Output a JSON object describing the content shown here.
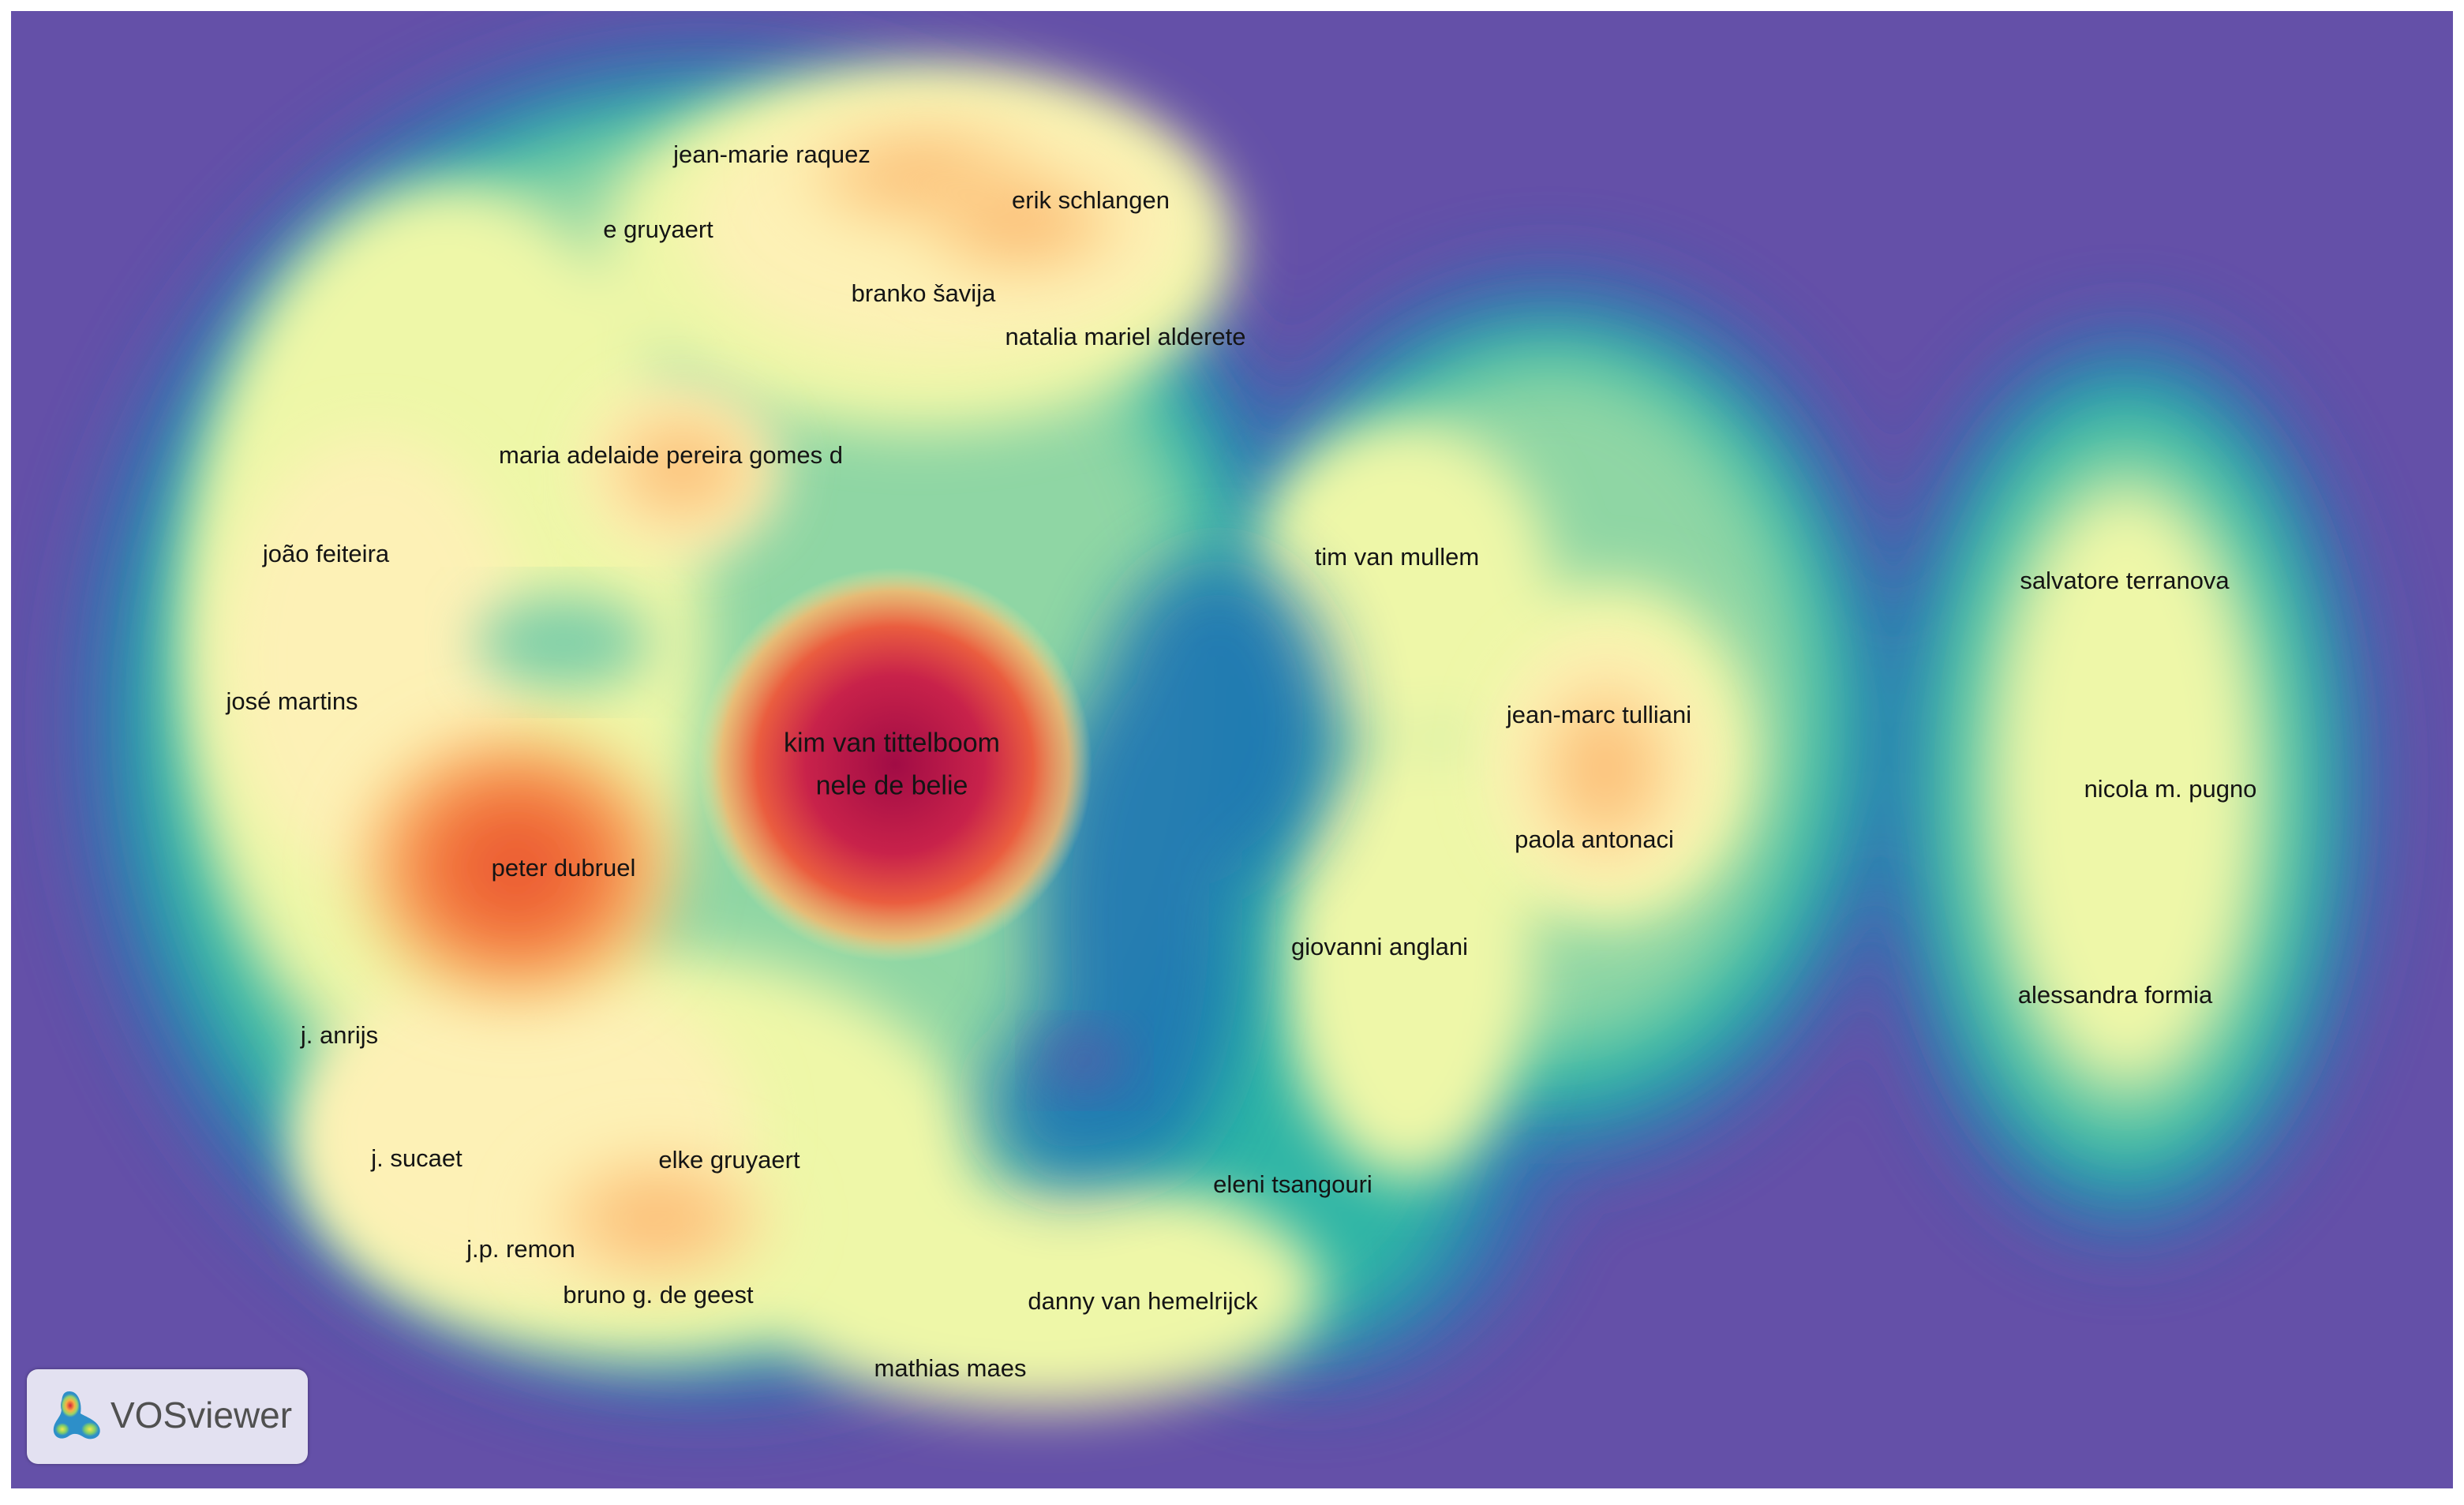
{
  "map": {
    "labels": [
      {
        "id": "jean-marie-raquez",
        "text": "jean-marie raquez"
      },
      {
        "id": "erik-schlangen",
        "text": "erik schlangen"
      },
      {
        "id": "e-gruyaert",
        "text": "e gruyaert"
      },
      {
        "id": "branko-savija",
        "text": "branko šavija"
      },
      {
        "id": "natalia-mariel-alderete",
        "text": "natalia mariel alderete"
      },
      {
        "id": "maria-adelaide-pereira-gomes-d",
        "text": "maria adelaide pereira gomes d"
      },
      {
        "id": "joao-feiteira",
        "text": "joão feiteira"
      },
      {
        "id": "jose-martins",
        "text": "josé martins"
      },
      {
        "id": "kim-van-tittelboom",
        "text": "kim van tittelboom"
      },
      {
        "id": "nele-de-belie",
        "text": "nele de belie"
      },
      {
        "id": "peter-dubruel",
        "text": "peter dubruel"
      },
      {
        "id": "j-anrijs",
        "text": "j. anrijs"
      },
      {
        "id": "j-sucaet",
        "text": "j. sucaet"
      },
      {
        "id": "elke-gruyaert",
        "text": "elke gruyaert"
      },
      {
        "id": "jp-remon",
        "text": "j.p. remon"
      },
      {
        "id": "bruno-g-de-geest",
        "text": "bruno g. de geest"
      },
      {
        "id": "mathias-maes",
        "text": "mathias maes"
      },
      {
        "id": "danny-van-hemelrijck",
        "text": "danny van hemelrijck"
      },
      {
        "id": "eleni-tsangouri",
        "text": "eleni tsangouri"
      },
      {
        "id": "giovanni-anglani",
        "text": "giovanni anglani"
      },
      {
        "id": "tim-van-mullem",
        "text": "tim van mullem"
      },
      {
        "id": "jean-marc-tulliani",
        "text": "jean-marc tulliani"
      },
      {
        "id": "paola-antonaci",
        "text": "paola antonaci"
      },
      {
        "id": "salvatore-terranova",
        "text": "salvatore terranova"
      },
      {
        "id": "nicola-m-pugno",
        "text": "nicola m. pugno"
      },
      {
        "id": "alessandra-formia",
        "text": "alessandra formia"
      }
    ]
  },
  "logo": {
    "text": "VOSviewer",
    "icon": "vosviewer-logo-icon"
  },
  "colors": {
    "background": "#6450a8",
    "low": "#2878b4",
    "mid": "#ffffbf",
    "high": "#c2174a"
  }
}
